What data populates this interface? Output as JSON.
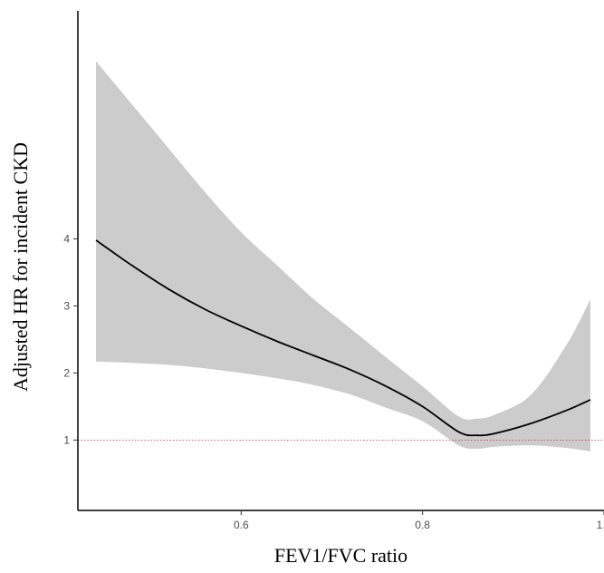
{
  "chart_data": {
    "type": "line",
    "title": "",
    "xlabel": "FEV1/FVC ratio",
    "ylabel": "Adjusted HR for incident CKD",
    "xlim": [
      0.42,
      1.0
    ],
    "ylim": [
      -0.05,
      7.4
    ],
    "x_ticks": [
      0.6,
      0.8,
      1.0
    ],
    "x_tick_labels": [
      "0.6",
      "0.8",
      "1.0"
    ],
    "y_ticks": [
      1,
      2,
      3,
      4
    ],
    "y_tick_labels": [
      "1",
      "2",
      "3",
      "4"
    ],
    "grid": false,
    "reference_line": {
      "y": 1,
      "color": "#cc3333",
      "style": "dotted"
    },
    "series": [
      {
        "line_color": "#000000",
        "band_color": "#cccccc",
        "points": [
          {
            "x": 0.44,
            "y": 3.98,
            "lower": 2.17,
            "upper": 6.65
          },
          {
            "x": 0.48,
            "y": 3.6,
            "lower": 2.15,
            "upper": 6.0
          },
          {
            "x": 0.52,
            "y": 3.25,
            "lower": 2.12,
            "upper": 5.35
          },
          {
            "x": 0.56,
            "y": 2.95,
            "lower": 2.07,
            "upper": 4.7
          },
          {
            "x": 0.6,
            "y": 2.7,
            "lower": 2.0,
            "upper": 4.1
          },
          {
            "x": 0.64,
            "y": 2.47,
            "lower": 1.92,
            "upper": 3.6
          },
          {
            "x": 0.68,
            "y": 2.26,
            "lower": 1.82,
            "upper": 3.1
          },
          {
            "x": 0.72,
            "y": 2.05,
            "lower": 1.68,
            "upper": 2.67
          },
          {
            "x": 0.76,
            "y": 1.8,
            "lower": 1.48,
            "upper": 2.23
          },
          {
            "x": 0.8,
            "y": 1.5,
            "lower": 1.28,
            "upper": 1.8
          },
          {
            "x": 0.84,
            "y": 1.12,
            "lower": 0.92,
            "upper": 1.35
          },
          {
            "x": 0.86,
            "y": 1.07,
            "lower": 0.87,
            "upper": 1.32
          },
          {
            "x": 0.88,
            "y": 1.1,
            "lower": 0.9,
            "upper": 1.38
          },
          {
            "x": 0.92,
            "y": 1.25,
            "lower": 0.92,
            "upper": 1.68
          },
          {
            "x": 0.96,
            "y": 1.45,
            "lower": 0.88,
            "upper": 2.45
          },
          {
            "x": 0.985,
            "y": 1.6,
            "lower": 0.83,
            "upper": 3.1
          }
        ]
      }
    ]
  }
}
